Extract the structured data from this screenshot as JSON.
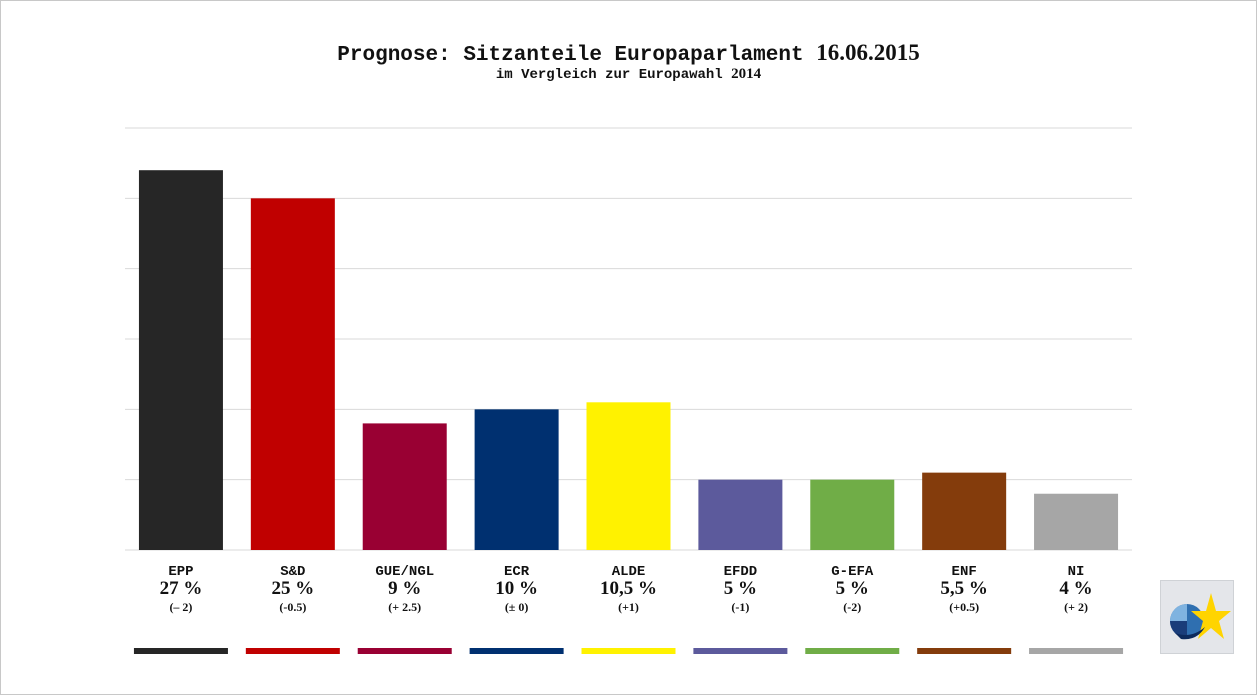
{
  "title": "Prognose: Sitzanteile Europaparlament",
  "title_date": "16.06.2015",
  "subtitle": "im Vergleich zur Europawahl",
  "subtitle_year": "2014",
  "chart_data": {
    "type": "bar",
    "categories": [
      "EPP",
      "S&D",
      "GUE/NGL",
      "ECR",
      "ALDE",
      "EFDD",
      "G-EFA",
      "ENF",
      "NI"
    ],
    "values": [
      27,
      25,
      9,
      10,
      10.5,
      5,
      5,
      5.5,
      4
    ],
    "value_labels": [
      "27 %",
      "25 %",
      "9 %",
      "10 %",
      "10,5 %",
      "5 %",
      "5 %",
      "5,5 %",
      "4 %"
    ],
    "change_labels": [
      "(– 2)",
      "(-0.5)",
      "(+ 2.5)",
      "(± 0)",
      "(+1)",
      "(-1)",
      "(-2)",
      "(+0.5)",
      "(+ 2)"
    ],
    "colors": [
      "#262626",
      "#c00000",
      "#990033",
      "#003070",
      "#fff200",
      "#5c5a9c",
      "#70ad47",
      "#843c0c",
      "#a6a6a6"
    ],
    "ylim": [
      0,
      30
    ],
    "grid": true,
    "xlabel": "",
    "ylabel": ""
  },
  "logo_icon": "eu-star-logo-icon"
}
